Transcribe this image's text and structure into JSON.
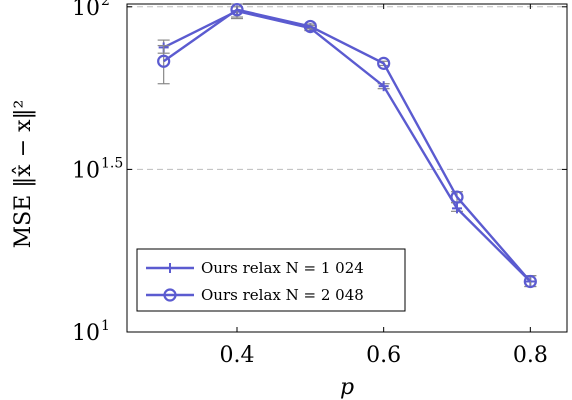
{
  "chart_data": {
    "type": "line",
    "xlabel": "p",
    "ylabel": "MSE ‖x̂ − x‖²",
    "yscale": "log",
    "xlim": [
      0.25,
      0.85
    ],
    "ylim": [
      10,
      102
    ],
    "xticks": [
      {
        "value": 0.4,
        "label": "0.4"
      },
      {
        "value": 0.6,
        "label": "0.6"
      },
      {
        "value": 0.8,
        "label": "0.8"
      }
    ],
    "yticks": [
      {
        "value": 10,
        "base": "10",
        "exp": "1"
      },
      {
        "value": 31.62,
        "base": "10",
        "exp": "1.5"
      },
      {
        "value": 100,
        "base": "10",
        "exp": "2"
      }
    ],
    "grid": "horizontal dashed at major y ticks",
    "legend_position": "bottom-left",
    "color": "#5b5bd0",
    "series": [
      {
        "name": "Ours relax N = 1 024",
        "marker": "plus",
        "x": [
          0.3,
          0.4,
          0.5,
          0.6,
          0.7,
          0.8
        ],
        "y": [
          75,
          97,
          86,
          57,
          24,
          14.3
        ],
        "err_low": [
          72,
          93,
          84.5,
          56,
          23.5,
          13.8
        ],
        "err_high": [
          79,
          100,
          87.5,
          58,
          25,
          14.9
        ]
      },
      {
        "name": "Ours relax N = 2 048",
        "marker": "circle",
        "x": [
          0.3,
          0.4,
          0.5,
          0.6,
          0.7,
          0.8
        ],
        "y": [
          68,
          98,
          87,
          67,
          26,
          14.3
        ],
        "err_low": [
          58,
          92,
          85.5,
          66,
          25,
          13.8
        ],
        "err_high": [
          76,
          102,
          88.5,
          68,
          27,
          14.9
        ]
      }
    ]
  }
}
